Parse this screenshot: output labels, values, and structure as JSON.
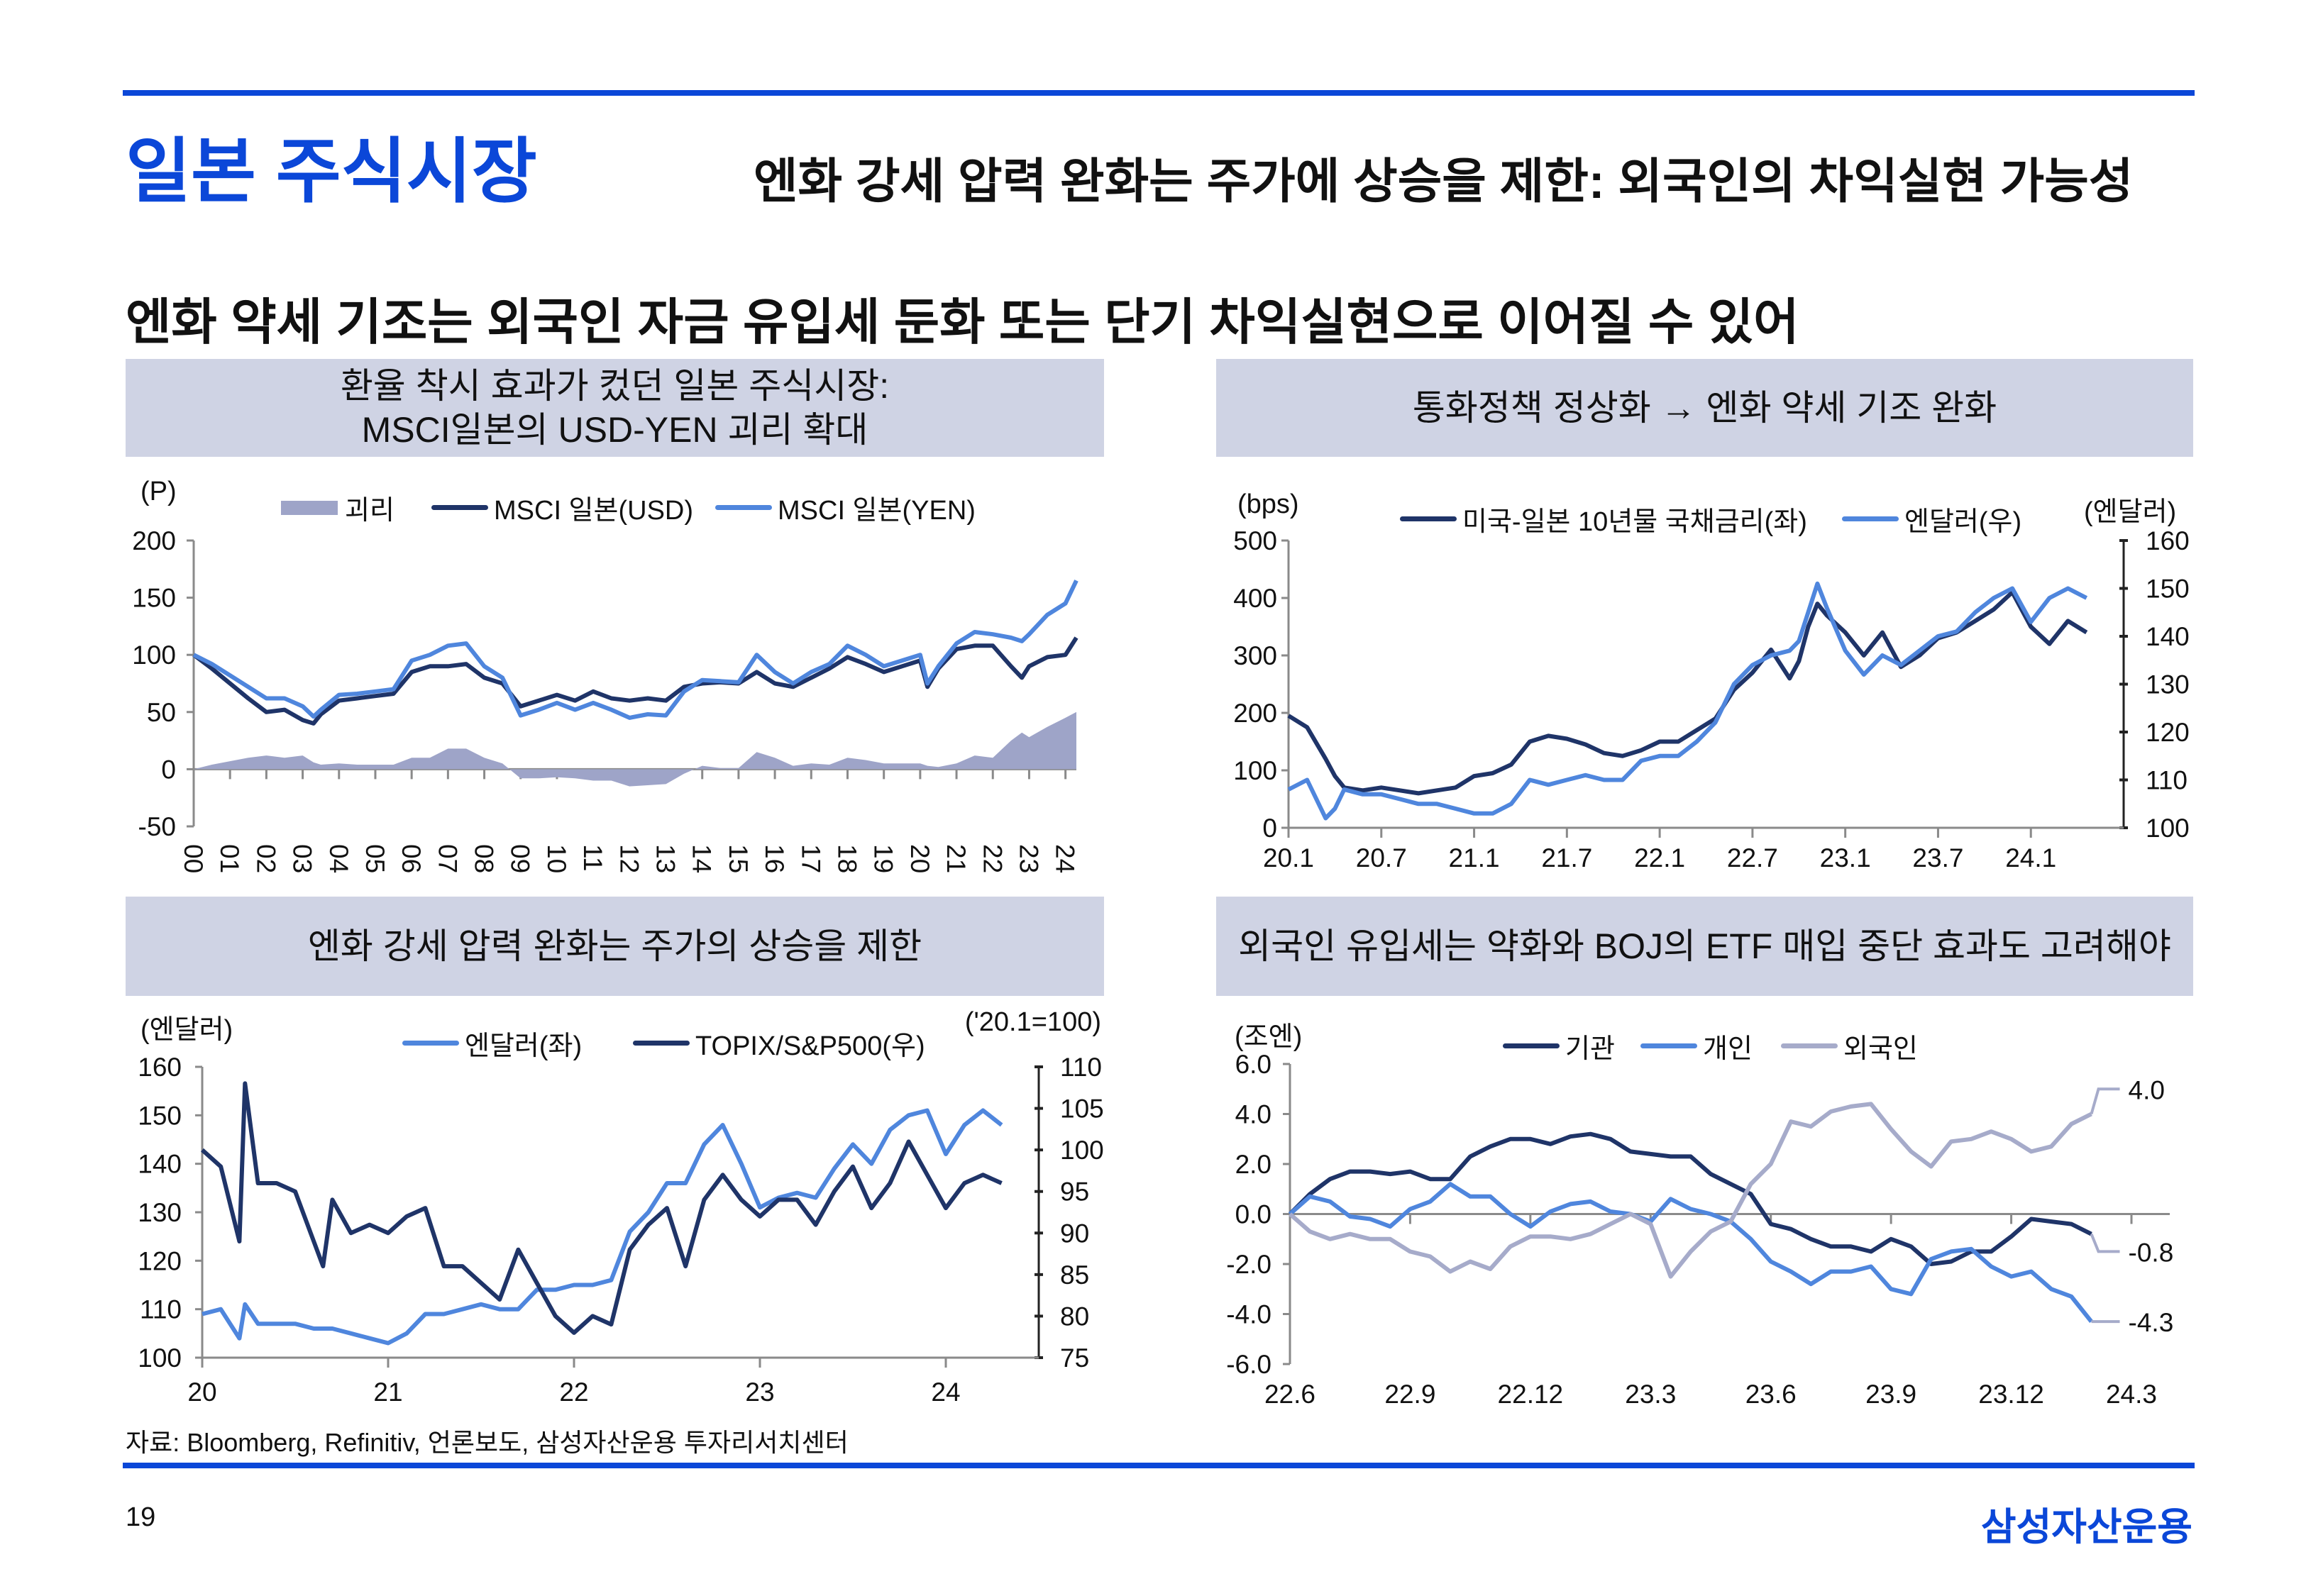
{
  "header": {
    "title": "일본 주식시장",
    "subtitle": "엔화 강세 압력 완화는 주가에 상승을 제한: 외국인의 차익실현 가능성"
  },
  "headline": "엔화 약세 기조는 외국인 자금 유입세 둔화 또는 단기 차익실현으로 이어질 수 있어",
  "panels": [
    {
      "title_lines": [
        "환율 착시 효과가 컸던 일본 주식시장:",
        "MSCI일본의 USD-YEN 괴리 확대"
      ]
    },
    {
      "title": "통화정책 정상화 → 엔화 약세 기조 완화"
    },
    {
      "title": "엔화 강세 압력 완화는 주가의 상승을 제한"
    },
    {
      "title": "외국인 유입세는 약화와 BOJ의 ETF 매입 중단 효과도 고려해야"
    }
  ],
  "source": "자료: Bloomberg, Refinitiv, 언론보도, 삼성자산운용 투자리서치센터",
  "footer": {
    "page": "19",
    "logo": "삼성자산운용"
  },
  "colors": {
    "brand": "#0b47d8",
    "navy": "#1f3468",
    "blue": "#4f86dd",
    "lavender": "#a6abca",
    "gap_fill": "#9ea4c8",
    "panel_bg": "#cfd3e4"
  },
  "chart_data": [
    {
      "type": "line",
      "unit_left": "(P)",
      "legend": [
        "괴리",
        "MSCI 일본(USD)",
        "MSCI 일본(YEN)"
      ],
      "x_axis": {
        "ticks": [
          2000,
          2001,
          2002,
          2003,
          2004,
          2005,
          2006,
          2007,
          2008,
          2009,
          2010,
          2011,
          2012,
          2013,
          2014,
          2015,
          2016,
          2017,
          2018,
          2019,
          2020,
          2021,
          2022,
          2023,
          2024
        ],
        "labels": [
          "00",
          "01",
          "02",
          "03",
          "04",
          "05",
          "06",
          "07",
          "08",
          "09",
          "10",
          "11",
          "12",
          "13",
          "14",
          "15",
          "16",
          "17",
          "18",
          "19",
          "20",
          "21",
          "22",
          "23",
          "24"
        ]
      },
      "y_left": {
        "ticks": [
          200,
          150,
          100,
          50,
          0,
          -50
        ],
        "labels": [
          "200",
          "150",
          "100",
          "50",
          "0",
          "-50"
        ],
        "range": [
          -50,
          200
        ]
      },
      "x": [
        2000,
        2000.5,
        2001,
        2001.5,
        2002,
        2002.5,
        2003,
        2003.3,
        2003.5,
        2004,
        2004.5,
        2005,
        2005.5,
        2006,
        2006.5,
        2007,
        2007.5,
        2008,
        2008.5,
        2009,
        2009.5,
        2010,
        2010.5,
        2011,
        2011.5,
        2012,
        2012.5,
        2013,
        2013.5,
        2014,
        2014.5,
        2015,
        2015.5,
        2016,
        2016.5,
        2017,
        2017.5,
        2018,
        2018.5,
        2019,
        2019.5,
        2020,
        2020.2,
        2020.5,
        2021,
        2021.5,
        2022,
        2022.5,
        2022.8,
        2023,
        2023.5,
        2024,
        2024.3
      ],
      "series": [
        {
          "name": "괴리",
          "kind": "area",
          "axis": "left",
          "color": "#9ea4c8",
          "values": [
            0,
            4,
            7,
            10,
            12,
            10,
            12,
            6,
            4,
            5,
            4,
            4,
            4,
            10,
            10,
            18,
            18,
            10,
            5,
            -8,
            -8,
            -7,
            -8,
            -10,
            -10,
            -15,
            -14,
            -13,
            -4,
            3,
            1,
            1,
            15,
            10,
            3,
            5,
            4,
            10,
            8,
            5,
            5,
            5,
            3,
            2,
            5,
            12,
            10,
            25,
            32,
            28,
            37,
            45,
            50
          ]
        },
        {
          "name": "MSCI 일본(USD)",
          "kind": "line",
          "axis": "left",
          "color": "#1f3468",
          "values": [
            100,
            88,
            75,
            62,
            50,
            52,
            43,
            40,
            48,
            60,
            62,
            64,
            66,
            85,
            90,
            90,
            92,
            80,
            75,
            55,
            60,
            65,
            60,
            68,
            62,
            60,
            62,
            60,
            72,
            75,
            76,
            75,
            85,
            75,
            72,
            80,
            88,
            98,
            92,
            85,
            90,
            95,
            72,
            88,
            105,
            108,
            108,
            90,
            80,
            90,
            98,
            100,
            115
          ]
        },
        {
          "name": "MSCI 일본(YEN)",
          "kind": "line",
          "axis": "left",
          "color": "#4f86dd",
          "values": [
            100,
            92,
            82,
            72,
            62,
            62,
            55,
            46,
            52,
            65,
            66,
            68,
            70,
            95,
            100,
            108,
            110,
            90,
            80,
            47,
            52,
            58,
            52,
            58,
            52,
            45,
            48,
            47,
            68,
            78,
            77,
            76,
            100,
            85,
            75,
            85,
            92,
            108,
            100,
            90,
            95,
            100,
            75,
            90,
            110,
            120,
            118,
            115,
            112,
            118,
            135,
            145,
            165
          ]
        }
      ]
    },
    {
      "type": "line",
      "unit_left": "(bps)",
      "unit_right": "(엔달러)",
      "legend": [
        "미국-일본 10년물 국채금리(좌)",
        "엔달러(우)"
      ],
      "x_axis": {
        "ticks": [
          2020,
          2020.5,
          2021,
          2021.5,
          2022,
          2022.5,
          2023,
          2023.5,
          2024
        ],
        "labels": [
          "20.1",
          "20.7",
          "21.1",
          "21.7",
          "22.1",
          "22.7",
          "23.1",
          "23.7",
          "24.1"
        ]
      },
      "y_left": {
        "ticks": [
          500,
          400,
          300,
          200,
          100,
          0
        ],
        "labels": [
          "500",
          "400",
          "300",
          "200",
          "100",
          "0"
        ],
        "range": [
          0,
          500
        ]
      },
      "y_right": {
        "ticks": [
          160,
          150,
          140,
          130,
          120,
          110,
          100
        ],
        "labels": [
          "160",
          "150",
          "140",
          "130",
          "120",
          "110",
          "100"
        ],
        "range": [
          100,
          160
        ]
      },
      "x": [
        2020,
        2020.1,
        2020.2,
        2020.25,
        2020.3,
        2020.4,
        2020.5,
        2020.6,
        2020.7,
        2020.8,
        2020.9,
        2021,
        2021.1,
        2021.2,
        2021.3,
        2021.4,
        2021.5,
        2021.6,
        2021.7,
        2021.8,
        2021.9,
        2022,
        2022.1,
        2022.2,
        2022.3,
        2022.4,
        2022.5,
        2022.6,
        2022.7,
        2022.75,
        2022.8,
        2022.85,
        2022.9,
        2023,
        2023.1,
        2023.2,
        2023.3,
        2023.4,
        2023.5,
        2023.6,
        2023.7,
        2023.8,
        2023.9,
        2024,
        2024.1,
        2024.2,
        2024.3
      ],
      "series": [
        {
          "name": "미국-일본 10년물 국채금리(좌)",
          "kind": "line",
          "axis": "left",
          "color": "#1f3468",
          "values": [
            195,
            175,
            120,
            90,
            70,
            65,
            70,
            65,
            60,
            65,
            70,
            90,
            95,
            110,
            150,
            160,
            155,
            145,
            130,
            125,
            135,
            150,
            150,
            170,
            190,
            240,
            270,
            310,
            260,
            290,
            350,
            390,
            370,
            340,
            300,
            340,
            280,
            300,
            330,
            340,
            360,
            380,
            410,
            350,
            320,
            360,
            340
          ]
        },
        {
          "name": "엔달러(우)",
          "kind": "line",
          "axis": "right",
          "color": "#4f86dd",
          "values": [
            108,
            110,
            102,
            104,
            108,
            107,
            107,
            106,
            105,
            105,
            104,
            103,
            103,
            105,
            110,
            109,
            110,
            111,
            110,
            110,
            114,
            115,
            115,
            118,
            122,
            130,
            134,
            136,
            137,
            139,
            145,
            151,
            146,
            137,
            132,
            136,
            134,
            137,
            140,
            141,
            145,
            148,
            150,
            143,
            148,
            150,
            148
          ]
        }
      ]
    },
    {
      "type": "line",
      "unit_left": "(엔달러)",
      "unit_right": "('20.1=100)",
      "legend": [
        "엔달러(좌)",
        "TOPIX/S&P500(우)"
      ],
      "x_axis": {
        "ticks": [
          2020,
          2021,
          2022,
          2023,
          2024
        ],
        "labels": [
          "20",
          "21",
          "22",
          "23",
          "24"
        ]
      },
      "y_left": {
        "ticks": [
          160,
          150,
          140,
          130,
          120,
          110,
          100
        ],
        "labels": [
          "160",
          "150",
          "140",
          "130",
          "120",
          "110",
          "100"
        ],
        "range": [
          100,
          160
        ]
      },
      "y_right": {
        "ticks": [
          110,
          105,
          100,
          95,
          90,
          85,
          80,
          75
        ],
        "labels": [
          "110",
          "105",
          "100",
          "95",
          "90",
          "85",
          "80",
          "75"
        ],
        "range": [
          75,
          110
        ]
      },
      "x": [
        2020,
        2020.1,
        2020.2,
        2020.23,
        2020.3,
        2020.4,
        2020.5,
        2020.6,
        2020.65,
        2020.7,
        2020.8,
        2020.9,
        2021,
        2021.1,
        2021.2,
        2021.3,
        2021.4,
        2021.5,
        2021.6,
        2021.7,
        2021.8,
        2021.9,
        2022,
        2022.1,
        2022.2,
        2022.3,
        2022.4,
        2022.5,
        2022.6,
        2022.7,
        2022.8,
        2022.9,
        2023,
        2023.1,
        2023.2,
        2023.3,
        2023.4,
        2023.5,
        2023.6,
        2023.7,
        2023.8,
        2023.9,
        2024,
        2024.1,
        2024.2,
        2024.3
      ],
      "series": [
        {
          "name": "엔달러(좌)",
          "kind": "line",
          "axis": "left",
          "color": "#4f86dd",
          "values": [
            109,
            110,
            104,
            111,
            107,
            107,
            107,
            106,
            106,
            106,
            105,
            104,
            103,
            105,
            109,
            109,
            110,
            111,
            110,
            110,
            114,
            114,
            115,
            115,
            116,
            126,
            130,
            136,
            136,
            144,
            148,
            140,
            131,
            133,
            134,
            133,
            139,
            144,
            140,
            147,
            150,
            151,
            142,
            148,
            151,
            148
          ]
        },
        {
          "name": "TOPIX/S&P500(우)",
          "kind": "line",
          "axis": "right",
          "color": "#1f3468",
          "values": [
            100,
            98,
            89,
            108,
            96,
            96,
            95,
            89,
            86,
            94,
            90,
            91,
            90,
            92,
            93,
            86,
            86,
            84,
            82,
            88,
            84,
            80,
            78,
            80,
            79,
            88,
            91,
            93,
            86,
            94,
            97,
            94,
            92,
            94,
            94,
            91,
            95,
            98,
            93,
            96,
            101,
            97,
            93,
            96,
            97,
            96
          ]
        }
      ]
    },
    {
      "type": "line",
      "unit_left": "(조엔)",
      "legend": [
        "기관",
        "개인",
        "외국인"
      ],
      "x_axis": {
        "ticks": [
          0,
          3,
          6,
          9,
          12,
          15,
          18,
          21
        ],
        "labels": [
          "22.6",
          "22.9",
          "22.12",
          "23.3",
          "23.6",
          "23.9",
          "23.12",
          "24.3"
        ]
      },
      "y_left": {
        "ticks": [
          6,
          4,
          2,
          0,
          -2,
          -4,
          -6
        ],
        "labels": [
          "6.0",
          "4.0",
          "2.0",
          "0.0",
          "-2.0",
          "-4.0",
          "-6.0"
        ],
        "range": [
          -6,
          6
        ]
      },
      "x": [
        0,
        0.5,
        1,
        1.5,
        2,
        2.5,
        3,
        3.5,
        4,
        4.5,
        5,
        5.5,
        6,
        6.5,
        7,
        7.5,
        8,
        8.5,
        9,
        9.5,
        10,
        10.5,
        11,
        11.5,
        12,
        12.5,
        13,
        13.5,
        14,
        14.5,
        15,
        15.5,
        16,
        16.5,
        17,
        17.5,
        18,
        18.5,
        19,
        19.5,
        20
      ],
      "series": [
        {
          "name": "기관",
          "kind": "line",
          "axis": "left",
          "color": "#1f3468",
          "values": [
            0,
            0.8,
            1.4,
            1.7,
            1.7,
            1.6,
            1.7,
            1.4,
            1.4,
            2.3,
            2.7,
            3.0,
            3.0,
            2.8,
            3.1,
            3.2,
            3.0,
            2.5,
            2.4,
            2.3,
            2.3,
            1.6,
            1.2,
            0.8,
            -0.4,
            -0.6,
            -1.0,
            -1.3,
            -1.3,
            -1.5,
            -1.0,
            -1.3,
            -2.0,
            -1.9,
            -1.5,
            -1.5,
            -0.9,
            -0.2,
            -0.3,
            -0.4,
            -0.8
          ]
        },
        {
          "name": "개인",
          "kind": "line",
          "axis": "left",
          "color": "#4f86dd",
          "values": [
            0,
            0.7,
            0.5,
            -0.1,
            -0.2,
            -0.5,
            0.2,
            0.5,
            1.2,
            0.7,
            0.7,
            0,
            -0.5,
            0.1,
            0.4,
            0.5,
            0.1,
            0.0,
            -0.3,
            0.6,
            0.2,
            0.0,
            -0.3,
            -1.0,
            -1.9,
            -2.3,
            -2.8,
            -2.3,
            -2.3,
            -2.1,
            -3.0,
            -3.2,
            -1.8,
            -1.5,
            -1.4,
            -2.1,
            -2.5,
            -2.3,
            -3.0,
            -3.3,
            -4.3
          ]
        },
        {
          "name": "외국인",
          "kind": "line",
          "axis": "left",
          "color": "#a6abca",
          "values": [
            0,
            -0.7,
            -1.0,
            -0.8,
            -1.0,
            -1.0,
            -1.5,
            -1.7,
            -2.3,
            -1.9,
            -2.2,
            -1.3,
            -0.9,
            -0.9,
            -1.0,
            -0.8,
            -0.4,
            0.0,
            -0.4,
            -2.5,
            -1.5,
            -0.7,
            -0.3,
            1.2,
            2.0,
            3.7,
            3.5,
            4.1,
            4.3,
            4.4,
            3.4,
            2.5,
            1.9,
            2.9,
            3.0,
            3.3,
            3.0,
            2.5,
            2.7,
            3.6,
            4.0
          ]
        }
      ],
      "end_labels": [
        "4.0",
        "-0.8",
        "-4.3"
      ]
    }
  ]
}
